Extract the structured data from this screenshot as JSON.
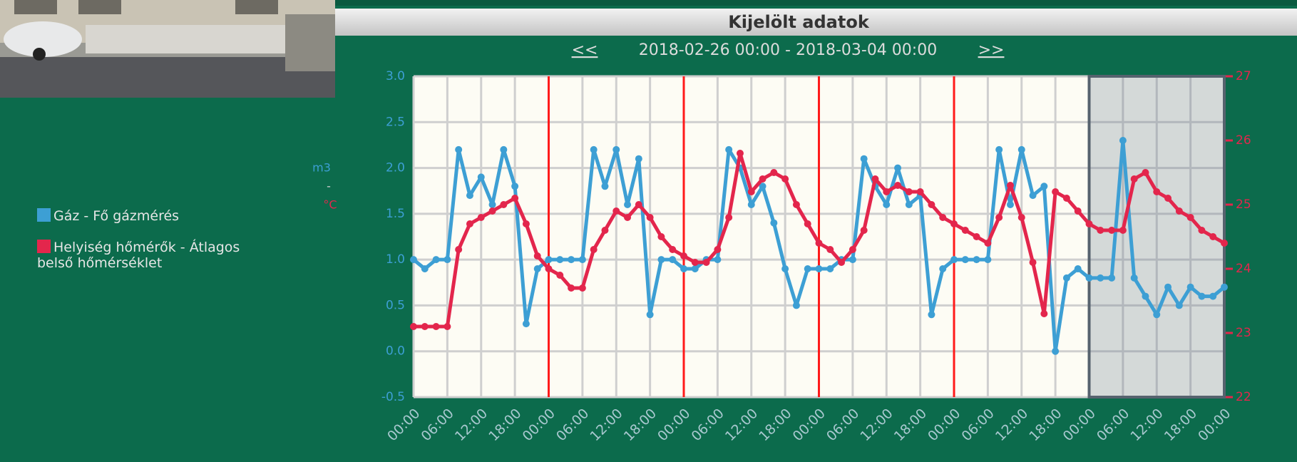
{
  "chart_data": {
    "type": "line",
    "title": "Kijelölt adatok",
    "nav_prev": "<<",
    "subtitle": "2018-02-26 00:00 - 2018-03-04 00:00",
    "nav_next": ">>",
    "ylabel": "m3",
    "ylabel_separator": "-",
    "y2label": "°C",
    "x": [
      0,
      2,
      4,
      6,
      8,
      10,
      12,
      14,
      16,
      18,
      20,
      22,
      24,
      26,
      28,
      30,
      32,
      34,
      36,
      38,
      40,
      42,
      44,
      46,
      48,
      50,
      52,
      54,
      56,
      58,
      60,
      62,
      64,
      66,
      68,
      70,
      72,
      74,
      76,
      78,
      80,
      82,
      84,
      86,
      88,
      90,
      92,
      94,
      96,
      98,
      100,
      102,
      104,
      106,
      108,
      110,
      112,
      114,
      116,
      118,
      120,
      122,
      124,
      126,
      128,
      130,
      132,
      134,
      136,
      138,
      140,
      142,
      144
    ],
    "series": [
      {
        "name": "Gáz - Fő gázmérés",
        "color": "#3d9fd4",
        "values": [
          1.0,
          0.9,
          1.0,
          1.0,
          2.2,
          1.7,
          1.9,
          1.6,
          2.2,
          1.8,
          0.3,
          0.9,
          1.0,
          1.0,
          1.0,
          1.0,
          2.2,
          1.8,
          2.2,
          1.6,
          2.1,
          0.4,
          1.0,
          1.0,
          0.9,
          0.9,
          1.0,
          1.0,
          2.2,
          2.0,
          1.6,
          1.8,
          1.4,
          0.9,
          0.5,
          0.9,
          0.9,
          0.9,
          1.0,
          1.0,
          2.1,
          1.8,
          1.6,
          2.0,
          1.6,
          1.7,
          0.4,
          0.9,
          1.0,
          1.0,
          1.0,
          1.0,
          2.2,
          1.6,
          2.2,
          1.7,
          1.8,
          0.0,
          0.8,
          0.9,
          0.8,
          0.8,
          0.8,
          2.3,
          0.8,
          0.6,
          0.4,
          0.7,
          0.5,
          0.7,
          0.6,
          0.6,
          0.7
        ]
      },
      {
        "name": "Helyiség hőmérők - Átlagos belső hőmérséklet",
        "color": "#e3264c",
        "axis": "y2",
        "values": [
          23.1,
          23.1,
          23.1,
          23.1,
          24.3,
          24.7,
          24.8,
          24.9,
          25.0,
          25.1,
          24.7,
          24.2,
          24.0,
          23.9,
          23.7,
          23.7,
          24.3,
          24.6,
          24.9,
          24.8,
          25.0,
          24.8,
          24.5,
          24.3,
          24.2,
          24.1,
          24.1,
          24.3,
          24.8,
          25.8,
          25.2,
          25.4,
          25.5,
          25.4,
          25.0,
          24.7,
          24.4,
          24.3,
          24.1,
          24.3,
          24.6,
          25.4,
          25.2,
          25.3,
          25.2,
          25.2,
          25.0,
          24.8,
          24.7,
          24.6,
          24.5,
          24.4,
          24.8,
          25.3,
          24.8,
          24.1,
          23.3,
          25.2,
          25.1,
          24.9,
          24.7,
          24.6,
          24.6,
          24.6,
          25.4,
          25.5,
          25.2,
          25.1,
          24.9,
          24.8,
          24.6,
          24.5,
          24.4
        ]
      }
    ],
    "xlim": [
      0,
      144
    ],
    "xticks": [
      {
        "value": 0,
        "label": "00:00"
      },
      {
        "value": 6,
        "label": "06:00"
      },
      {
        "value": 12,
        "label": "12:00"
      },
      {
        "value": 18,
        "label": "18:00"
      },
      {
        "value": 24,
        "label": "00:00"
      },
      {
        "value": 30,
        "label": "06:00"
      },
      {
        "value": 36,
        "label": "12:00"
      },
      {
        "value": 42,
        "label": "18:00"
      },
      {
        "value": 48,
        "label": "00:00"
      },
      {
        "value": 54,
        "label": "06:00"
      },
      {
        "value": 60,
        "label": "12:00"
      },
      {
        "value": 66,
        "label": "18:00"
      },
      {
        "value": 72,
        "label": "00:00"
      },
      {
        "value": 78,
        "label": "06:00"
      },
      {
        "value": 84,
        "label": "12:00"
      },
      {
        "value": 90,
        "label": "18:00"
      },
      {
        "value": 96,
        "label": "00:00"
      },
      {
        "value": 102,
        "label": "06:00"
      },
      {
        "value": 108,
        "label": "12:00"
      },
      {
        "value": 114,
        "label": "18:00"
      },
      {
        "value": 120,
        "label": "00:00"
      },
      {
        "value": 126,
        "label": "06:00"
      },
      {
        "value": 132,
        "label": "12:00"
      },
      {
        "value": 138,
        "label": "18:00"
      },
      {
        "value": 144,
        "label": "00:00"
      }
    ],
    "ylim": [
      -0.5,
      3.0
    ],
    "yticks": [
      -0.5,
      {
        "value": 0,
        "label": "0.0"
      },
      0.5,
      {
        "value": 1,
        "label": "1.0"
      },
      1.5,
      {
        "value": 2,
        "label": "2.0"
      },
      2.5,
      {
        "value": 3,
        "label": "3.0"
      }
    ],
    "y2lim": [
      22,
      27
    ],
    "y2ticks": [
      22,
      23,
      24,
      25,
      26,
      27
    ],
    "grid": true,
    "day_lines": [
      24,
      48,
      72,
      96
    ],
    "highlight": [
      120,
      144
    ]
  }
}
